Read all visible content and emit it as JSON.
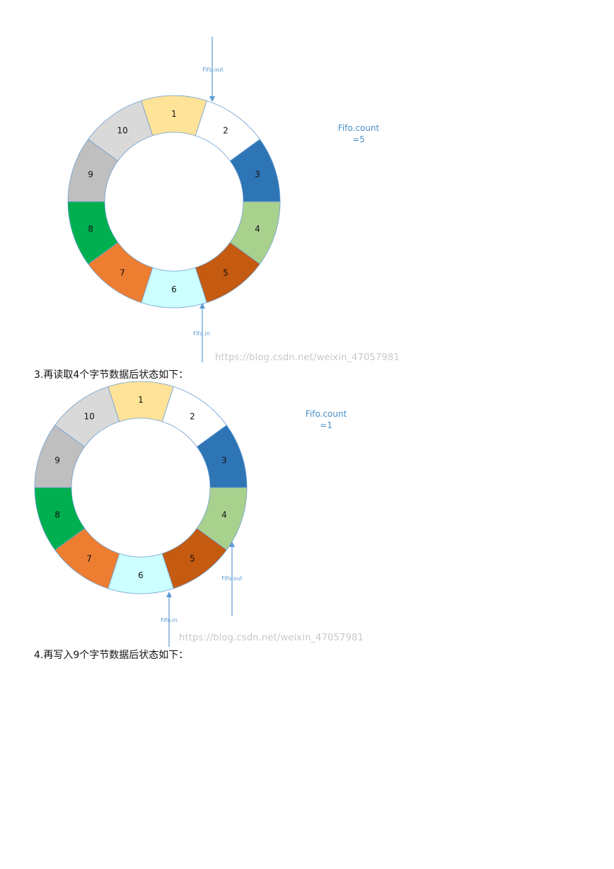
{
  "colors": {
    "seg1": "#ffe399",
    "seg2": "#ffffff",
    "seg3": "#2e75b6",
    "seg4": "#a9d18e",
    "seg5": "#c55a11",
    "seg6": "#ccffff",
    "seg7": "#ed7d31",
    "seg8": "#00b050",
    "seg9": "#bfbfbf",
    "seg10": "#d9d9d9",
    "pointer": "#5b9bd5",
    "outline": "#6e9fd0"
  },
  "segment_labels": [
    "1",
    "2",
    "3",
    "4",
    "5",
    "6",
    "7",
    "8",
    "9",
    "10"
  ],
  "diagram1": {
    "out_label": "Fifo.out",
    "in_label": "Fifo.in",
    "count_title": "Fifo.count",
    "count_value": "=5",
    "watermark": "https://blog.csdn.net/weixin_47057981"
  },
  "caption1": "3.再读取4个字节数据后状态如下：",
  "diagram2": {
    "out_label": "Fifo.out",
    "in_label": "Fifo.in",
    "count_title": "Fifo.count",
    "count_value": "=1",
    "watermark": "https://blog.csdn.net/weixin_47057981"
  },
  "caption2": "4.再写入9个字节数据后状态如下："
}
